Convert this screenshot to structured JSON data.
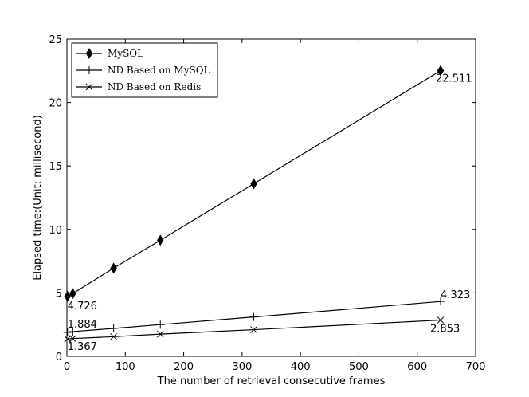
{
  "chart_data": {
    "type": "line",
    "title": "",
    "xlabel": "The number of retrieval consecutive frames",
    "ylabel": "Elapsed time:(Unit: millisecond)",
    "xlim": [
      0,
      700
    ],
    "ylim": [
      0,
      25
    ],
    "xticks": [
      0,
      100,
      200,
      300,
      400,
      500,
      600,
      700
    ],
    "yticks": [
      0,
      5,
      10,
      15,
      20,
      25
    ],
    "grid": false,
    "legend_position": "top-left",
    "x": [
      1,
      10,
      80,
      160,
      320,
      640
    ],
    "series": [
      {
        "name": "MySQL",
        "marker": "thin-diamond",
        "values": [
          4.726,
          4.95,
          6.95,
          9.15,
          13.6,
          22.511
        ]
      },
      {
        "name": "ND Based on MySQL",
        "marker": "plus",
        "values": [
          1.884,
          1.95,
          2.2,
          2.5,
          3.1,
          4.323
        ]
      },
      {
        "name": "ND Based on Redis",
        "marker": "x",
        "values": [
          1.367,
          1.4,
          1.55,
          1.75,
          2.1,
          2.853
        ]
      }
    ],
    "annotations": [
      {
        "text": "22.511",
        "x": 640,
        "y": 22.511,
        "series": 0
      },
      {
        "text": "4.726",
        "x": 1,
        "y": 4.726,
        "series": 0
      },
      {
        "text": "4.323",
        "x": 640,
        "y": 4.323,
        "series": 1
      },
      {
        "text": "1.884",
        "x": 1,
        "y": 1.884,
        "series": 1
      },
      {
        "text": "2.853",
        "x": 640,
        "y": 2.853,
        "series": 2
      },
      {
        "text": "1.367",
        "x": 1,
        "y": 1.367,
        "series": 2
      }
    ],
    "colors": {
      "line": "#000000",
      "axes": "#000000",
      "background": "#ffffff"
    }
  }
}
